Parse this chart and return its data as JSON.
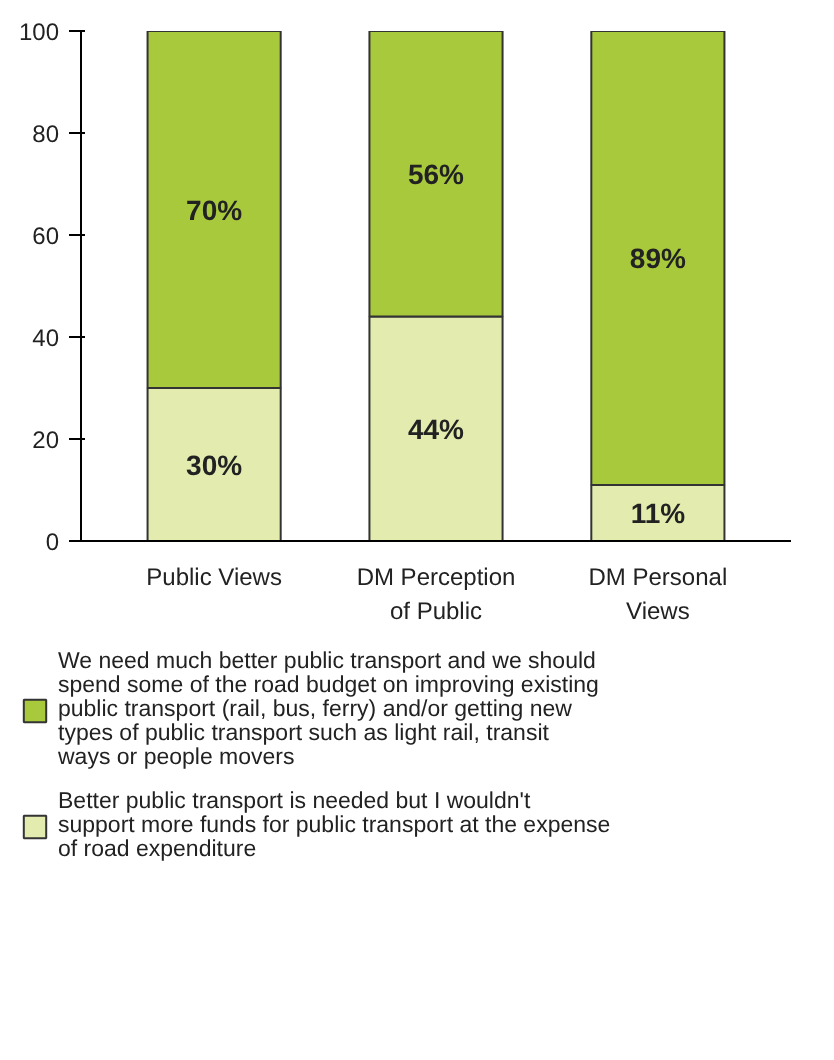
{
  "chart_data": {
    "type": "bar",
    "stacked": true,
    "categories": [
      "Public Views",
      "DM Perception of Public",
      "DM Personal Views"
    ],
    "series": [
      {
        "name": "Better public transport is needed but I wouldn't support more funds for public transport at the expense of road expenditure",
        "color": "#e3ecae",
        "values": [
          30,
          44,
          11
        ],
        "value_labels": [
          "30%",
          "44%",
          "11%"
        ]
      },
      {
        "name": "We need much better public transport and we should spend some of the road budget on improving existing public transport (rail, bus, ferry) and/or getting new types of public transport such as light rail, transit ways or people movers",
        "color": "#a9c93c",
        "values": [
          70,
          56,
          89
        ],
        "value_labels": [
          "70%",
          "56%",
          "89%"
        ]
      }
    ],
    "ylim": [
      0,
      100
    ],
    "yticks": [
      0,
      20,
      40,
      60,
      80,
      100
    ],
    "grid": false,
    "legend": "bottom"
  }
}
